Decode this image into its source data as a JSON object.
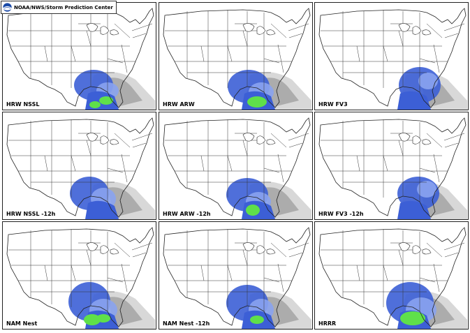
{
  "credit": {
    "text": "NOAA/NWS/Storm Prediction Center",
    "logo": "noaa-logo"
  },
  "panels": [
    {
      "label": "HRW NSSL"
    },
    {
      "label": "HRW ARW"
    },
    {
      "label": "HRW FV3"
    },
    {
      "label": "HRW NSSL -12h"
    },
    {
      "label": "HRW ARW -12h"
    },
    {
      "label": "HRW FV3 -12h"
    },
    {
      "label": "NAM Nest"
    },
    {
      "label": "NAM Nest -12h"
    },
    {
      "label": "HRRR"
    }
  ],
  "colors": {
    "blue": "#3c5fd6",
    "light_blue": "#8aa3f0",
    "green": "#5fe04a",
    "gray": "#9a9a9a",
    "light_gray": "#d8d8d8"
  }
}
